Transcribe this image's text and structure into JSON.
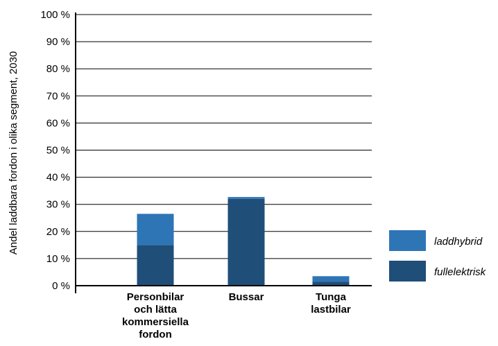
{
  "chart_data": {
    "type": "bar",
    "stacked": true,
    "categories": [
      [
        "Personbilar",
        "och lätta",
        "kommersiella",
        "fordon"
      ],
      [
        "Bussar"
      ],
      [
        "Tunga",
        "lastbilar"
      ]
    ],
    "series": [
      {
        "name": "fullelektrisk",
        "values": [
          15,
          32,
          1.5
        ],
        "color": "#1f4e79"
      },
      {
        "name": "laddhybrid",
        "values": [
          11.5,
          0.7,
          2.0
        ],
        "color": "#2e75b6"
      }
    ],
    "ylabel": "Andel laddbara fordon i olika segment, 2030",
    "ylim": [
      0,
      100
    ],
    "yticks": [
      "0 %",
      "10 %",
      "20 %",
      "30 %",
      "40 %",
      "50 %",
      "60 %",
      "70 %",
      "80 %",
      "90 %",
      "100 %"
    ],
    "grid": true,
    "legend": {
      "placement": "right",
      "order": [
        "laddhybrid",
        "fullelektrisk"
      ]
    }
  }
}
